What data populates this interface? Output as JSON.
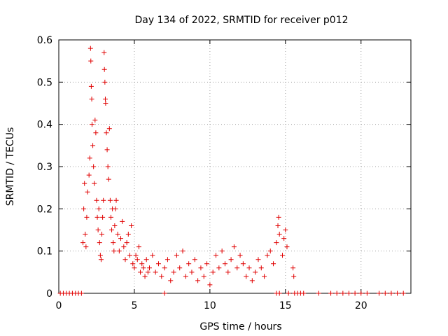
{
  "chart_data": {
    "type": "scatter",
    "title": "Day 134 of 2022, SRMTID for receiver p012",
    "xlabel": "GPS time / hours",
    "ylabel": "SRMTID / TECUs",
    "xlim": [
      0,
      23.3
    ],
    "ylim": [
      0,
      0.6
    ],
    "xticks": [
      0,
      5,
      10,
      15,
      20
    ],
    "yticks": [
      0,
      0.1,
      0.2,
      0.3,
      0.4,
      0.5,
      0.6
    ],
    "xtick_labels": [
      "0",
      "5",
      "10",
      "15",
      "20"
    ],
    "ytick_labels": [
      "0",
      "0.1",
      "0.2",
      "0.3",
      "0.4",
      "0.5",
      "0.6"
    ],
    "grid": true,
    "marker": "+",
    "series": [
      {
        "name": "SRMTID",
        "color": "#e00000",
        "points": [
          [
            0.1,
            0
          ],
          [
            0.3,
            0
          ],
          [
            0.5,
            0
          ],
          [
            0.7,
            0
          ],
          [
            0.9,
            0
          ],
          [
            1.1,
            0
          ],
          [
            1.3,
            0
          ],
          [
            1.5,
            0
          ],
          [
            1.6,
            0.12
          ],
          [
            1.65,
            0.2
          ],
          [
            1.7,
            0.26
          ],
          [
            1.75,
            0.14
          ],
          [
            1.8,
            0.11
          ],
          [
            1.85,
            0.18
          ],
          [
            1.9,
            0.24
          ],
          [
            2.0,
            0.28
          ],
          [
            2.05,
            0.32
          ],
          [
            2.1,
            0.58
          ],
          [
            2.12,
            0.55
          ],
          [
            2.15,
            0.49
          ],
          [
            2.18,
            0.46
          ],
          [
            2.2,
            0.4
          ],
          [
            2.25,
            0.35
          ],
          [
            2.3,
            0.3
          ],
          [
            2.35,
            0.26
          ],
          [
            2.4,
            0.41
          ],
          [
            2.45,
            0.38
          ],
          [
            2.5,
            0.22
          ],
          [
            2.55,
            0.18
          ],
          [
            2.6,
            0.15
          ],
          [
            2.65,
            0.2
          ],
          [
            2.7,
            0.12
          ],
          [
            2.75,
            0.09
          ],
          [
            2.8,
            0.08
          ],
          [
            2.85,
            0.14
          ],
          [
            2.9,
            0.18
          ],
          [
            2.95,
            0.22
          ],
          [
            3.0,
            0.57
          ],
          [
            3.02,
            0.53
          ],
          [
            3.05,
            0.5
          ],
          [
            3.08,
            0.46
          ],
          [
            3.1,
            0.45
          ],
          [
            3.15,
            0.38
          ],
          [
            3.2,
            0.34
          ],
          [
            3.25,
            0.3
          ],
          [
            3.3,
            0.27
          ],
          [
            3.35,
            0.39
          ],
          [
            3.4,
            0.22
          ],
          [
            3.45,
            0.18
          ],
          [
            3.5,
            0.15
          ],
          [
            3.55,
            0.2
          ],
          [
            3.6,
            0.12
          ],
          [
            3.65,
            0.1
          ],
          [
            3.7,
            0.16
          ],
          [
            3.75,
            0.2
          ],
          [
            3.8,
            0.22
          ],
          [
            3.9,
            0.14
          ],
          [
            4.0,
            0.1
          ],
          [
            4.1,
            0.13
          ],
          [
            4.2,
            0.17
          ],
          [
            4.3,
            0.11
          ],
          [
            4.4,
            0.08
          ],
          [
            4.5,
            0.12
          ],
          [
            4.6,
            0.14
          ],
          [
            4.7,
            0.09
          ],
          [
            4.8,
            0.16
          ],
          [
            4.9,
            0.07
          ],
          [
            5.0,
            0.06
          ],
          [
            5.1,
            0.09
          ],
          [
            5.2,
            0.08
          ],
          [
            5.3,
            0.11
          ],
          [
            5.4,
            0.05
          ],
          [
            5.5,
            0.07
          ],
          [
            5.6,
            0.06
          ],
          [
            5.7,
            0.04
          ],
          [
            5.8,
            0.08
          ],
          [
            5.9,
            0.05
          ],
          [
            6.0,
            0.06
          ],
          [
            6.2,
            0.09
          ],
          [
            6.4,
            0.05
          ],
          [
            6.6,
            0.07
          ],
          [
            6.8,
            0.04
          ],
          [
            7.0,
            0.06
          ],
          [
            7.2,
            0.08
          ],
          [
            7.4,
            0.03
          ],
          [
            7.6,
            0.05
          ],
          [
            7.8,
            0.09
          ],
          [
            8.0,
            0.06
          ],
          [
            8.2,
            0.1
          ],
          [
            8.4,
            0.04
          ],
          [
            8.6,
            0.07
          ],
          [
            8.8,
            0.05
          ],
          [
            9.0,
            0.08
          ],
          [
            9.2,
            0.03
          ],
          [
            9.4,
            0.06
          ],
          [
            9.6,
            0.04
          ],
          [
            9.8,
            0.07
          ],
          [
            10.0,
            0.02
          ],
          [
            10.2,
            0.05
          ],
          [
            10.4,
            0.09
          ],
          [
            10.6,
            0.06
          ],
          [
            10.8,
            0.1
          ],
          [
            11.0,
            0.07
          ],
          [
            11.2,
            0.05
          ],
          [
            11.4,
            0.08
          ],
          [
            11.6,
            0.11
          ],
          [
            11.8,
            0.06
          ],
          [
            12.0,
            0.09
          ],
          [
            12.2,
            0.07
          ],
          [
            12.4,
            0.04
          ],
          [
            12.6,
            0.06
          ],
          [
            12.8,
            0.03
          ],
          [
            13.0,
            0.05
          ],
          [
            13.2,
            0.08
          ],
          [
            13.4,
            0.06
          ],
          [
            13.6,
            0.04
          ],
          [
            13.8,
            0.09
          ],
          [
            14.0,
            0.1
          ],
          [
            14.2,
            0.07
          ],
          [
            14.4,
            0.12
          ],
          [
            14.5,
            0.16
          ],
          [
            14.55,
            0.18
          ],
          [
            14.6,
            0.14
          ],
          [
            14.8,
            0.09
          ],
          [
            14.9,
            0.13
          ],
          [
            15.0,
            0.15
          ],
          [
            15.1,
            0.11
          ],
          [
            15.5,
            0.06
          ],
          [
            15.55,
            0.04
          ],
          [
            7.0,
            0
          ],
          [
            14.4,
            0
          ],
          [
            14.6,
            0
          ],
          [
            15.2,
            0
          ],
          [
            15.6,
            0
          ],
          [
            15.8,
            0
          ],
          [
            16.0,
            0
          ],
          [
            16.2,
            0
          ],
          [
            17.2,
            0
          ],
          [
            18.0,
            0
          ],
          [
            18.4,
            0
          ],
          [
            18.8,
            0
          ],
          [
            19.2,
            0
          ],
          [
            19.6,
            0
          ],
          [
            20.0,
            0
          ],
          [
            20.4,
            0
          ],
          [
            21.2,
            0
          ],
          [
            21.6,
            0
          ],
          [
            22.0,
            0
          ],
          [
            22.4,
            0
          ],
          [
            22.8,
            0
          ]
        ]
      }
    ]
  }
}
